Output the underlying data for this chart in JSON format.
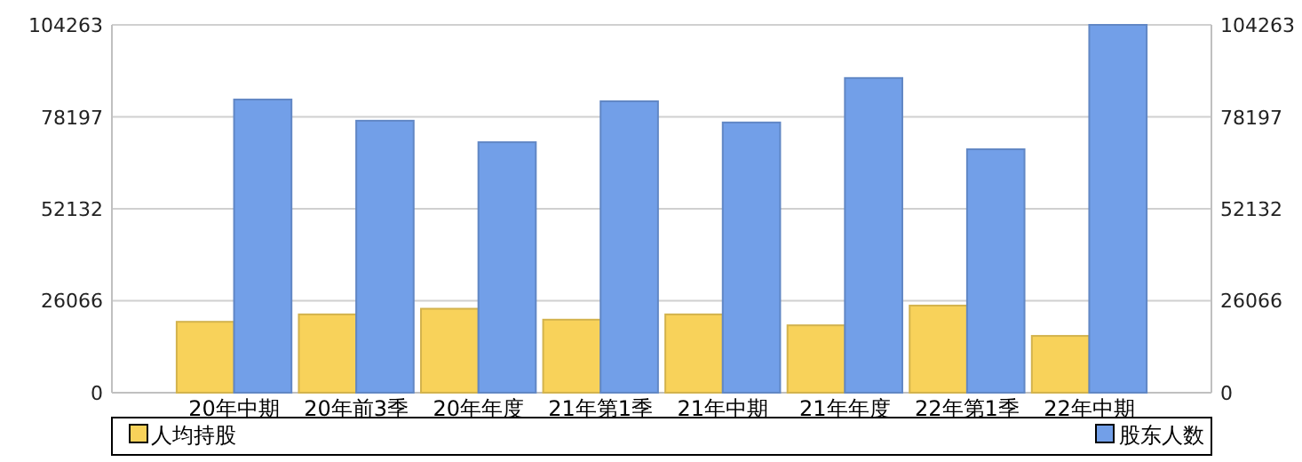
{
  "chart_data": {
    "type": "bar",
    "categories": [
      "20年中期",
      "20年前3季",
      "20年年度",
      "21年第1季",
      "21年中期",
      "21年年度",
      "22年第1季",
      "22年中期"
    ],
    "series": [
      {
        "name": "人均持股",
        "color": "#f8d25a",
        "values": [
          20100,
          22200,
          23800,
          20700,
          22200,
          19100,
          24700,
          16100
        ]
      },
      {
        "name": "股东人数",
        "color": "#729fe8",
        "values": [
          83100,
          77100,
          71000,
          82600,
          76600,
          89200,
          69000,
          104263
        ]
      }
    ],
    "ylim": [
      0,
      104263
    ],
    "yticks": [
      0,
      26066,
      52132,
      78197,
      104263
    ],
    "y2lim": [
      0,
      104263
    ],
    "y2ticks": [
      0,
      26066,
      52132,
      78197,
      104263
    ],
    "grid": "y",
    "legend": "bottom"
  }
}
